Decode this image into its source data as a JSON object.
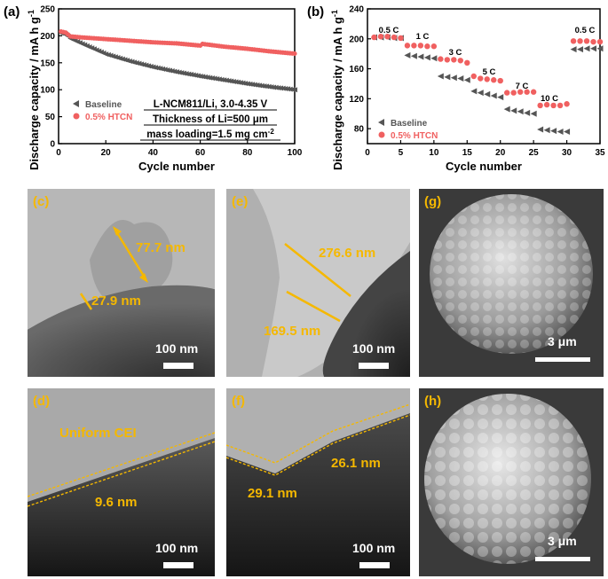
{
  "charts": {
    "a": {
      "panel_label": "(a)",
      "ylabel": "Discharge capacity / mA h g",
      "ylabel_sup": "-1",
      "xlabel": "Cycle number",
      "xticks": [
        "0",
        "20",
        "40",
        "60",
        "80",
        "100"
      ],
      "yticks": [
        "0",
        "50",
        "100",
        "150",
        "200",
        "250"
      ],
      "legend": [
        "Baseline",
        "0.5% HTCN"
      ],
      "annotation": {
        "line1": "L-NCM811/Li, 3.0-4.35 V",
        "line2": "Thickness of Li=500 μm",
        "line3a": "mass loading=1.5 mg cm",
        "line3sup": "-2"
      }
    },
    "b": {
      "panel_label": "(b)",
      "ylabel": "Discharge capacity / mA h g",
      "ylabel_sup": "-1",
      "xlabel": "Cycle number",
      "xticks": [
        "0",
        "5",
        "10",
        "15",
        "20",
        "25",
        "30",
        "35"
      ],
      "yticks": [
        "80",
        "120",
        "160",
        "200",
        "240"
      ],
      "legend": [
        "Baseline",
        "0.5% HTCN"
      ],
      "rate_labels": [
        "0.5 C",
        "1 C",
        "3 C",
        "5 C",
        "7 C",
        "10 C",
        "0.5 C"
      ]
    }
  },
  "chart_data": [
    {
      "type": "scatter",
      "xlabel": "Cycle number",
      "ylabel": "Discharge capacity / mA h g-1",
      "xlim": [
        0,
        100
      ],
      "ylim": [
        0,
        250
      ],
      "series": [
        {
          "name": "Baseline",
          "marker": "triangle-left",
          "color": "#555555",
          "anchors": [
            [
              1,
              205
            ],
            [
              3,
              203
            ],
            [
              5,
              195
            ],
            [
              10,
              185
            ],
            [
              20,
              166
            ],
            [
              30,
              153
            ],
            [
              40,
              142
            ],
            [
              50,
              133
            ],
            [
              60,
              125
            ],
            [
              70,
              118
            ],
            [
              80,
              111
            ],
            [
              90,
              105
            ],
            [
              100,
              100
            ]
          ]
        },
        {
          "name": "0.5% HTCN",
          "marker": "circle",
          "color": "#f06060",
          "anchors": [
            [
              1,
              208
            ],
            [
              3,
              206
            ],
            [
              5,
              199
            ],
            [
              10,
              197
            ],
            [
              20,
              194
            ],
            [
              30,
              191
            ],
            [
              40,
              188
            ],
            [
              50,
              186
            ],
            [
              60,
              182
            ],
            [
              61,
              185
            ],
            [
              70,
              180
            ],
            [
              80,
              176
            ],
            [
              90,
              171
            ],
            [
              100,
              167
            ]
          ]
        }
      ]
    },
    {
      "type": "scatter",
      "xlabel": "Cycle number",
      "ylabel": "Discharge capacity / mA h g-1",
      "xlim": [
        0,
        35
      ],
      "ylim": [
        60,
        240
      ],
      "series": [
        {
          "name": "Baseline",
          "marker": "triangle-left",
          "color": "#555555",
          "x": [
            1,
            2,
            3,
            4,
            5,
            6,
            7,
            8,
            9,
            10,
            11,
            12,
            13,
            14,
            15,
            16,
            17,
            18,
            19,
            20,
            21,
            22,
            23,
            24,
            25,
            26,
            27,
            28,
            29,
            30,
            31,
            32,
            33,
            34,
            35
          ],
          "y": [
            202,
            202,
            202,
            201,
            201,
            178,
            177,
            176,
            175,
            174,
            150,
            149,
            148,
            147,
            145,
            130,
            128,
            126,
            124,
            122,
            106,
            104,
            103,
            101,
            100,
            79,
            78,
            77,
            76,
            76,
            186,
            186,
            187,
            187,
            187
          ]
        },
        {
          "name": "0.5% HTCN",
          "marker": "circle",
          "color": "#f06060",
          "x": [
            1,
            2,
            3,
            4,
            5,
            6,
            7,
            8,
            9,
            10,
            11,
            12,
            13,
            14,
            15,
            16,
            17,
            18,
            19,
            20,
            21,
            22,
            23,
            24,
            25,
            26,
            27,
            28,
            29,
            30,
            31,
            32,
            33,
            34,
            35
          ],
          "y": [
            202,
            203,
            203,
            202,
            201,
            191,
            191,
            191,
            190,
            190,
            173,
            172,
            172,
            171,
            168,
            150,
            147,
            146,
            145,
            144,
            128,
            128,
            129,
            129,
            129,
            111,
            112,
            111,
            111,
            113,
            197,
            197,
            197,
            196,
            196
          ]
        }
      ]
    }
  ],
  "images": {
    "c": {
      "label": "(c)",
      "meas1": "77.7 nm",
      "meas2": "27.9 nm",
      "scale": "100 nm"
    },
    "e": {
      "label": "(e)",
      "meas1": "276.6 nm",
      "meas2": "169.5 nm",
      "scale": "100 nm"
    },
    "g": {
      "label": "(g)",
      "scale": "3 μm"
    },
    "d": {
      "label": "(d)",
      "tag": "Uniform CEI",
      "meas1": "9.6 nm",
      "scale": "100 nm"
    },
    "f": {
      "label": "(f)",
      "meas1": "29.1 nm",
      "meas2": "26.1 nm",
      "scale": "100 nm"
    },
    "h": {
      "label": "(h)",
      "scale": "3 μm"
    }
  },
  "colors": {
    "baseline": "#555555",
    "htcn": "#f06060",
    "annotation": "#f5b800"
  }
}
